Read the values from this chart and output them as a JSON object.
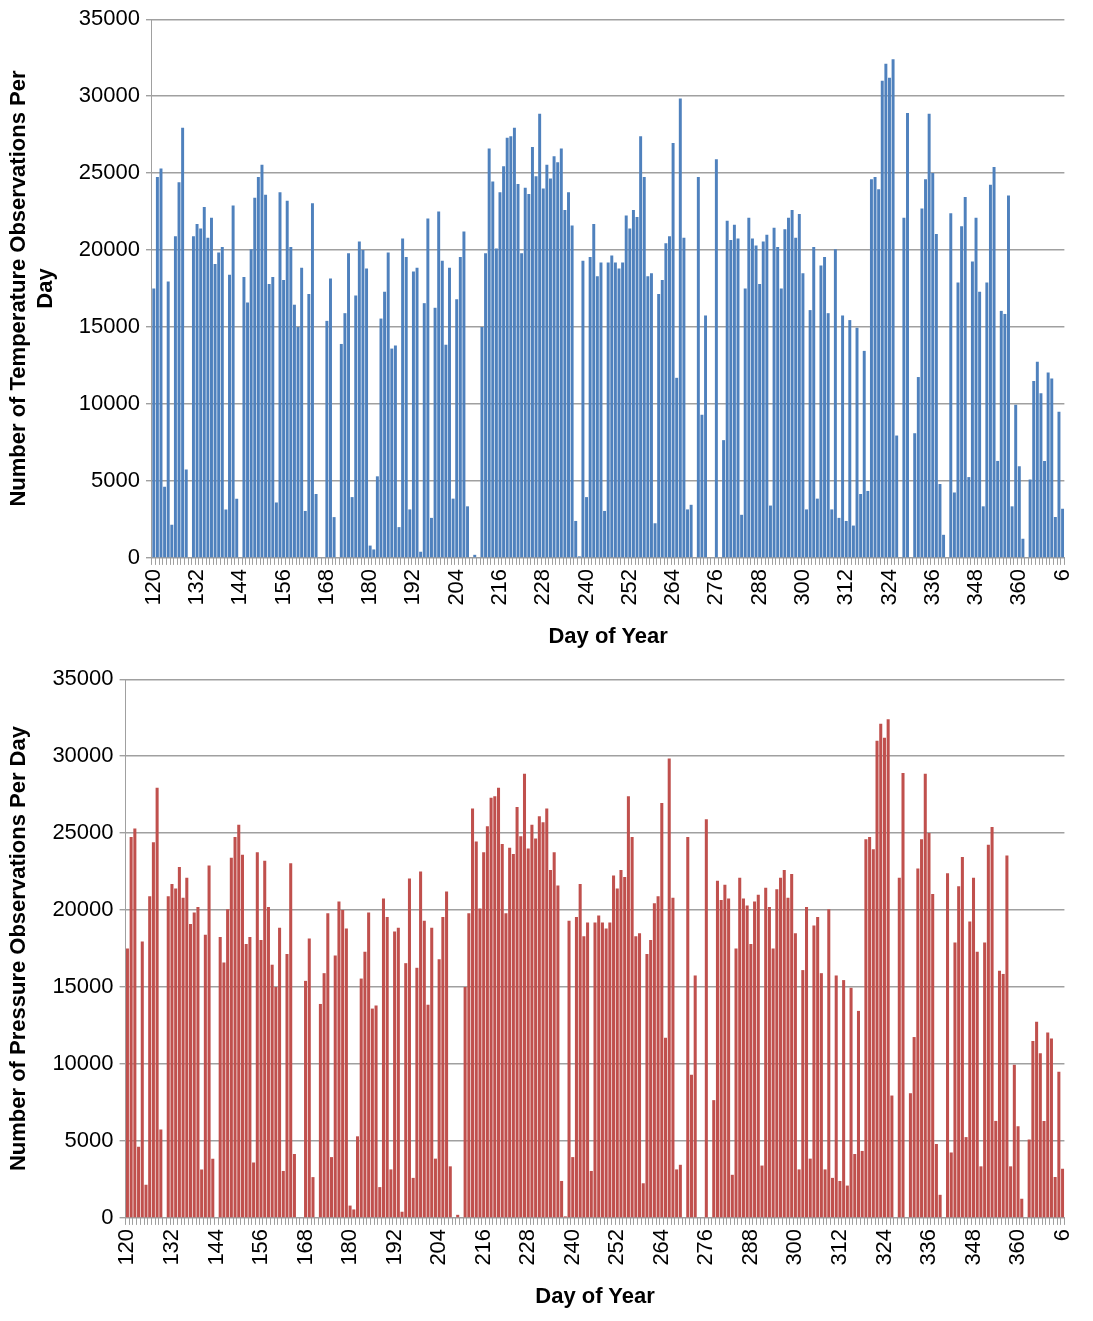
{
  "chart_data": [
    {
      "type": "bar",
      "xlabel": "Day of Year",
      "ylabel": "Number of Temperature Observations Per Day",
      "color": "#4f81bd",
      "ylim": [
        0,
        35000
      ],
      "yticks": [
        0,
        5000,
        10000,
        15000,
        20000,
        25000,
        30000,
        35000
      ],
      "grid": "y",
      "legend": false,
      "categories": [
        "120",
        null,
        null,
        null,
        null,
        null,
        null,
        null,
        null,
        null,
        null,
        null,
        "132",
        null,
        null,
        null,
        null,
        null,
        null,
        null,
        null,
        null,
        null,
        null,
        "144",
        null,
        null,
        null,
        null,
        null,
        null,
        null,
        null,
        null,
        null,
        null,
        "156",
        null,
        null,
        null,
        null,
        null,
        null,
        null,
        null,
        null,
        null,
        null,
        "168",
        null,
        null,
        null,
        null,
        null,
        null,
        null,
        null,
        null,
        null,
        null,
        "180",
        null,
        null,
        null,
        null,
        null,
        null,
        null,
        null,
        null,
        null,
        null,
        "192",
        null,
        null,
        null,
        null,
        null,
        null,
        null,
        null,
        null,
        null,
        null,
        "204",
        null,
        null,
        null,
        null,
        null,
        null,
        null,
        null,
        null,
        null,
        null,
        "216",
        null,
        null,
        null,
        null,
        null,
        null,
        null,
        null,
        null,
        null,
        null,
        "228",
        null,
        null,
        null,
        null,
        null,
        null,
        null,
        null,
        null,
        null,
        null,
        "240",
        null,
        null,
        null,
        null,
        null,
        null,
        null,
        null,
        null,
        null,
        null,
        "252",
        null,
        null,
        null,
        null,
        null,
        null,
        null,
        null,
        null,
        null,
        null,
        "264",
        null,
        null,
        null,
        null,
        null,
        null,
        null,
        null,
        null,
        null,
        null,
        "276",
        null,
        null,
        null,
        null,
        null,
        null,
        null,
        null,
        null,
        null,
        null,
        "288",
        null,
        null,
        null,
        null,
        null,
        null,
        null,
        null,
        null,
        null,
        null,
        "300",
        null,
        null,
        null,
        null,
        null,
        null,
        null,
        null,
        null,
        null,
        null,
        "312",
        null,
        null,
        null,
        null,
        null,
        null,
        null,
        null,
        null,
        null,
        null,
        "324",
        null,
        null,
        null,
        null,
        null,
        null,
        null,
        null,
        null,
        null,
        null,
        "336",
        null,
        null,
        null,
        null,
        null,
        null,
        null,
        null,
        null,
        null,
        null,
        "348",
        null,
        null,
        null,
        null,
        null,
        null,
        null,
        null,
        null,
        null,
        null,
        "360",
        null,
        null,
        null,
        null,
        null,
        null,
        null,
        null,
        null,
        null,
        null,
        "6"
      ],
      "values": [
        17500,
        24750,
        25300,
        4630,
        17950,
        2150,
        20900,
        24400,
        27950,
        5750,
        0,
        20900,
        21700,
        21400,
        22800,
        20800,
        22100,
        19100,
        19850,
        20200,
        3150,
        18400,
        22900,
        3850,
        0,
        18250,
        16600,
        20050,
        23400,
        24750,
        25550,
        23600,
        17800,
        18250,
        3600,
        23750,
        18050,
        23200,
        20200,
        16450,
        15000,
        18850,
        3050,
        17150,
        23050,
        4150,
        0,
        0,
        15400,
        18150,
        2650,
        0,
        13900,
        15900,
        19800,
        3950,
        17050,
        20550,
        20000,
        18800,
        800,
        550,
        5300,
        15550,
        17300,
        19850,
        13600,
        13800,
        2000,
        20750,
        19550,
        3150,
        18600,
        18850,
        400,
        16550,
        22050,
        2600,
        16250,
        22500,
        19300,
        13850,
        18850,
        3850,
        16800,
        19550,
        21200,
        3350,
        0,
        200,
        0,
        15000,
        19800,
        26600,
        24450,
        20100,
        23750,
        25450,
        27300,
        27400,
        27950,
        24300,
        19800,
        24050,
        23650,
        26700,
        24800,
        28850,
        24000,
        25550,
        24650,
        26100,
        25700,
        26600,
        22600,
        23750,
        21600,
        2400,
        100,
        19300,
        3950,
        19550,
        21700,
        18300,
        19200,
        3050,
        19200,
        19650,
        19200,
        18800,
        19200,
        22250,
        21400,
        22600,
        22150,
        27400,
        24750,
        18300,
        18500,
        2250,
        17150,
        18050,
        20450,
        20900,
        26950,
        11700,
        29850,
        20800,
        3150,
        3450,
        0,
        24750,
        9300,
        15750,
        0,
        0,
        25900,
        0,
        7650,
        21900,
        20650,
        21650,
        20750,
        2800,
        17500,
        22100,
        20750,
        20300,
        17800,
        20550,
        21000,
        3400,
        21450,
        20200,
        17500,
        21350,
        22100,
        22600,
        20800,
        22350,
        18500,
        3150,
        16100,
        20200,
        3850,
        19000,
        19550,
        15900,
        3150,
        20050,
        2600,
        15750,
        2400,
        15450,
        2100,
        14950,
        4150,
        13450,
        4350,
        24600,
        24750,
        23950,
        31000,
        32100,
        31200,
        32400,
        7950,
        0,
        22100,
        28900,
        0,
        8100,
        11750,
        22700,
        24600,
        28850,
        25000,
        21050,
        4800,
        1500,
        0,
        22400,
        4250,
        17900,
        21550,
        23450,
        5250,
        19250,
        22100,
        17300,
        3350,
        17900,
        24250,
        25400,
        6300,
        16050,
        15850,
        23550,
        3350,
        9950,
        5950,
        1250,
        0,
        5100,
        11500,
        12750,
        10700,
        6300,
        12050,
        11650,
        2650,
        9500,
        3200
      ]
    },
    {
      "type": "bar",
      "xlabel": "Day of Year",
      "ylabel": "Number of Pressure Observations Per Day",
      "color": "#c0504d",
      "ylim": [
        0,
        35000
      ],
      "yticks": [
        0,
        5000,
        10000,
        15000,
        20000,
        25000,
        30000,
        35000
      ],
      "grid": "y",
      "legend": false,
      "categories": [
        "120",
        null,
        null,
        null,
        null,
        null,
        null,
        null,
        null,
        null,
        null,
        null,
        "132",
        null,
        null,
        null,
        null,
        null,
        null,
        null,
        null,
        null,
        null,
        null,
        "144",
        null,
        null,
        null,
        null,
        null,
        null,
        null,
        null,
        null,
        null,
        null,
        "156",
        null,
        null,
        null,
        null,
        null,
        null,
        null,
        null,
        null,
        null,
        null,
        "168",
        null,
        null,
        null,
        null,
        null,
        null,
        null,
        null,
        null,
        null,
        null,
        "180",
        null,
        null,
        null,
        null,
        null,
        null,
        null,
        null,
        null,
        null,
        null,
        "192",
        null,
        null,
        null,
        null,
        null,
        null,
        null,
        null,
        null,
        null,
        null,
        "204",
        null,
        null,
        null,
        null,
        null,
        null,
        null,
        null,
        null,
        null,
        null,
        "216",
        null,
        null,
        null,
        null,
        null,
        null,
        null,
        null,
        null,
        null,
        null,
        "228",
        null,
        null,
        null,
        null,
        null,
        null,
        null,
        null,
        null,
        null,
        null,
        "240",
        null,
        null,
        null,
        null,
        null,
        null,
        null,
        null,
        null,
        null,
        null,
        "252",
        null,
        null,
        null,
        null,
        null,
        null,
        null,
        null,
        null,
        null,
        null,
        "264",
        null,
        null,
        null,
        null,
        null,
        null,
        null,
        null,
        null,
        null,
        null,
        "276",
        null,
        null,
        null,
        null,
        null,
        null,
        null,
        null,
        null,
        null,
        null,
        "288",
        null,
        null,
        null,
        null,
        null,
        null,
        null,
        null,
        null,
        null,
        null,
        "300",
        null,
        null,
        null,
        null,
        null,
        null,
        null,
        null,
        null,
        null,
        null,
        "312",
        null,
        null,
        null,
        null,
        null,
        null,
        null,
        null,
        null,
        null,
        null,
        "324",
        null,
        null,
        null,
        null,
        null,
        null,
        null,
        null,
        null,
        null,
        null,
        "336",
        null,
        null,
        null,
        null,
        null,
        null,
        null,
        null,
        null,
        null,
        null,
        "348",
        null,
        null,
        null,
        null,
        null,
        null,
        null,
        null,
        null,
        null,
        null,
        "360",
        null,
        null,
        null,
        null,
        null,
        null,
        null,
        null,
        null,
        null,
        null,
        "6"
      ],
      "values": [
        17500,
        24750,
        25300,
        4630,
        17950,
        2150,
        20900,
        24400,
        27950,
        5750,
        0,
        20900,
        21700,
        21400,
        22800,
        20800,
        22100,
        19100,
        19850,
        20200,
        3150,
        18400,
        22900,
        3850,
        0,
        18250,
        16600,
        20050,
        23400,
        24750,
        25550,
        23600,
        17800,
        18250,
        3600,
        23750,
        18050,
        23200,
        20200,
        16450,
        15000,
        18850,
        3050,
        17150,
        23050,
        4150,
        0,
        0,
        15400,
        18150,
        2650,
        0,
        13900,
        15900,
        19800,
        3950,
        17050,
        20550,
        20000,
        18800,
        800,
        550,
        5300,
        15550,
        17300,
        19850,
        13600,
        13800,
        2000,
        20750,
        19550,
        3150,
        18600,
        18850,
        400,
        16550,
        22050,
        2600,
        16250,
        22500,
        19300,
        13850,
        18850,
        3850,
        16800,
        19550,
        21200,
        3350,
        0,
        200,
        0,
        15000,
        19800,
        26600,
        24450,
        20100,
        23750,
        25450,
        27300,
        27400,
        27950,
        24300,
        19800,
        24050,
        23650,
        26700,
        24800,
        28850,
        24000,
        25550,
        24650,
        26100,
        25700,
        26600,
        22600,
        23750,
        21600,
        2400,
        100,
        19300,
        3950,
        19550,
        21700,
        18300,
        19200,
        3050,
        19200,
        19650,
        19200,
        18800,
        19200,
        22250,
        21400,
        22600,
        22150,
        27400,
        24750,
        18300,
        18500,
        2250,
        17150,
        18050,
        20450,
        20900,
        26950,
        11700,
        29850,
        20800,
        3150,
        3450,
        0,
        24750,
        9300,
        15750,
        0,
        0,
        25900,
        0,
        7650,
        21900,
        20650,
        21650,
        20750,
        2800,
        17500,
        22100,
        20750,
        20300,
        17800,
        20550,
        21000,
        3400,
        21450,
        20200,
        17500,
        21350,
        22100,
        22600,
        20800,
        22350,
        18500,
        3150,
        16100,
        20200,
        3850,
        19000,
        19550,
        15900,
        3150,
        20050,
        2600,
        15750,
        2400,
        15450,
        2100,
        14950,
        4150,
        13450,
        4350,
        24600,
        24750,
        23950,
        31000,
        32100,
        31200,
        32400,
        7950,
        0,
        22100,
        28900,
        0,
        8100,
        11750,
        22700,
        24600,
        28850,
        25000,
        21050,
        4800,
        1500,
        0,
        22400,
        4250,
        17900,
        21550,
        23450,
        5250,
        19250,
        22100,
        17300,
        3350,
        17900,
        24250,
        25400,
        6300,
        16050,
        15850,
        23550,
        3350,
        9950,
        5950,
        1250,
        0,
        5100,
        11500,
        12750,
        10700,
        6300,
        12050,
        11650,
        2650,
        9500,
        3200
      ]
    }
  ]
}
